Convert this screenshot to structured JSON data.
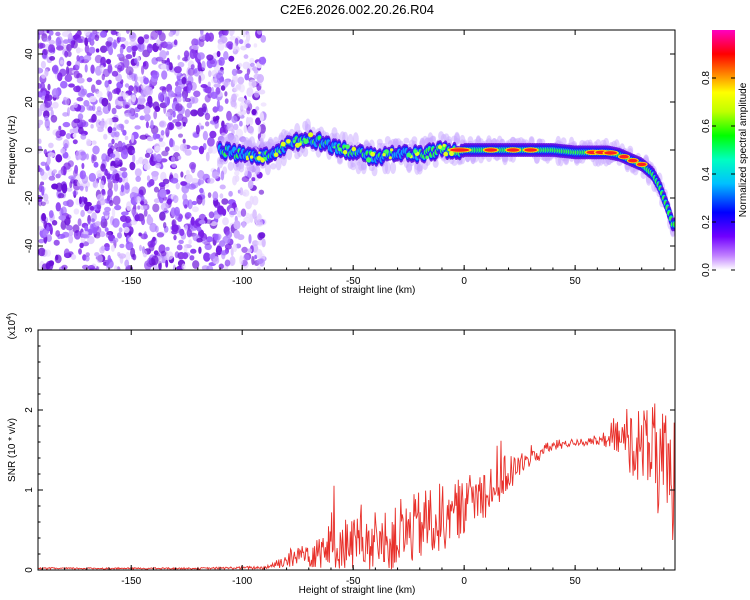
{
  "title": "C2E6.2026.002.20.26.R04",
  "chart_data": [
    {
      "type": "heatmap",
      "title": "C2E6.2026.002.20.26.R04",
      "xlabel": "Height of straight line (km)",
      "ylabel": "Frequency (Hz)",
      "xlim": [
        -192,
        95
      ],
      "ylim": [
        -50,
        50
      ],
      "xticks": [
        -150,
        -100,
        -50,
        0,
        50
      ],
      "yticks": [
        -40,
        -20,
        0,
        20,
        40
      ],
      "colorbar": {
        "label": "Normalized spectral amplitude",
        "range": [
          0,
          1
        ],
        "ticks": [
          "0.0",
          "0.2",
          "0.4",
          "0.6",
          "0.8"
        ],
        "tick_values": [
          0.0,
          0.2,
          0.4,
          0.6,
          0.8
        ],
        "colors": [
          "#ffffff",
          "#a000ff",
          "#0000ff",
          "#00ffff",
          "#00ff00",
          "#ffff00",
          "#ff8000",
          "#ff0000",
          "#ff00ff"
        ]
      },
      "noise_region_km": [
        -192,
        -90
      ],
      "signal_start_km": -110,
      "ridge": {
        "x": [
          -110,
          -100,
          -90,
          -80,
          -70,
          -60,
          -50,
          -40,
          -30,
          -20,
          -10,
          0,
          10,
          20,
          30,
          40,
          50,
          60,
          65,
          70,
          75,
          80,
          85,
          88,
          90,
          92,
          94
        ],
        "y": [
          0,
          -2,
          -3,
          2,
          5,
          2,
          -1,
          -3,
          -1,
          -2,
          0,
          0,
          0,
          0,
          0,
          0,
          -1,
          -1,
          -1,
          -2,
          -4,
          -6,
          -10,
          -15,
          -20,
          -25,
          -31
        ]
      }
    },
    {
      "type": "line",
      "xlabel": "Height of straight line (km)",
      "ylabel": "SNR (10 * v/v)",
      "y_multiplier": "(x10",
      "y_multiplier_exp": "4",
      "y_multiplier_close": ")",
      "xlim": [
        -192,
        95
      ],
      "ylim": [
        0,
        3
      ],
      "xticks": [
        -150,
        -100,
        -50,
        0,
        50
      ],
      "yticks": [
        0,
        1,
        2,
        3
      ],
      "series": [
        {
          "name": "SNR",
          "color": "#e8302a",
          "envelope": {
            "x": [
              -192,
              -120,
              -90,
              -80,
              -70,
              -60,
              -50,
              -40,
              -30,
              -20,
              -10,
              0,
              10,
              20,
              30,
              40,
              50,
              60,
              65,
              70,
              75,
              80,
              85,
              90,
              95
            ],
            "mean": [
              0.02,
              0.02,
              0.03,
              0.12,
              0.22,
              0.3,
              0.35,
              0.3,
              0.4,
              0.55,
              0.65,
              0.8,
              1.0,
              1.2,
              1.4,
              1.55,
              1.6,
              1.6,
              1.62,
              1.65,
              1.6,
              1.55,
              1.5,
              1.2,
              1.0
            ],
            "spread": [
              0.01,
              0.01,
              0.02,
              0.1,
              0.2,
              0.3,
              0.35,
              0.35,
              0.4,
              0.45,
              0.45,
              0.35,
              0.35,
              0.25,
              0.12,
              0.07,
              0.05,
              0.05,
              0.1,
              0.25,
              0.4,
              0.5,
              0.6,
              0.8,
              1.0
            ]
          }
        }
      ]
    }
  ]
}
